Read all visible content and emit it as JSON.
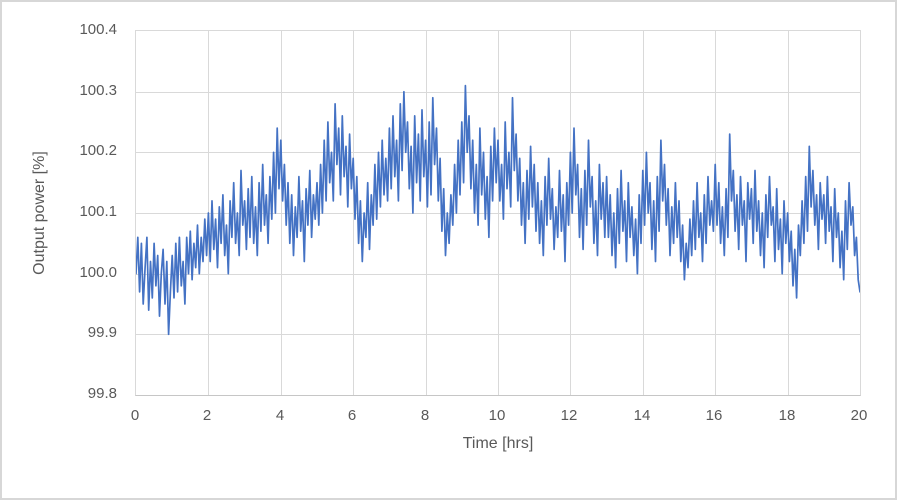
{
  "chart": {
    "line_color": "#4472C4",
    "grid_color": "#D9D9D9",
    "axis_color": "#C6C6C6",
    "text_color": "#595959",
    "background": "#FFFFFF"
  },
  "chart_data": {
    "type": "line",
    "title": "",
    "xlabel": "Time [hrs]",
    "ylabel": "Output power [%]",
    "xlim": [
      0,
      20
    ],
    "ylim": [
      99.8,
      100.4
    ],
    "x_ticks": [
      0,
      2,
      4,
      6,
      8,
      10,
      12,
      14,
      16,
      18,
      20
    ],
    "y_ticks": [
      99.8,
      99.9,
      100.0,
      100.1,
      100.2,
      100.3,
      100.4
    ],
    "x_tick_labels": [
      "0",
      "2",
      "4",
      "6",
      "8",
      "10",
      "12",
      "14",
      "16",
      "18",
      "20"
    ],
    "y_tick_labels": [
      "99.8",
      "99.9",
      "100.0",
      "100.1",
      "100.2",
      "100.3",
      "100.4"
    ],
    "grid": true,
    "legend": false,
    "x_start": 0,
    "x_step": 0.05,
    "series": [
      {
        "name": "Output power",
        "color": "#4472C4",
        "values": [
          100.0,
          100.06,
          99.97,
          100.05,
          99.95,
          100.01,
          100.06,
          99.94,
          100.02,
          99.96,
          100.05,
          99.98,
          100.03,
          99.93,
          100.0,
          100.04,
          99.95,
          100.02,
          99.9,
          99.97,
          100.03,
          99.96,
          100.05,
          99.97,
          100.06,
          99.98,
          100.02,
          99.95,
          100.06,
          100.0,
          100.07,
          99.99,
          100.05,
          100.01,
          100.08,
          100.0,
          100.06,
          100.02,
          100.09,
          100.03,
          100.1,
          100.02,
          100.12,
          100.04,
          100.09,
          100.01,
          100.11,
          100.05,
          100.13,
          100.03,
          100.08,
          100.0,
          100.12,
          100.06,
          100.15,
          100.05,
          100.1,
          100.03,
          100.17,
          100.08,
          100.12,
          100.04,
          100.14,
          100.06,
          100.16,
          100.05,
          100.11,
          100.03,
          100.15,
          100.07,
          100.18,
          100.08,
          100.13,
          100.05,
          100.16,
          100.09,
          100.2,
          100.1,
          100.24,
          100.14,
          100.22,
          100.12,
          100.18,
          100.08,
          100.15,
          100.05,
          100.13,
          100.03,
          100.11,
          100.06,
          100.16,
          100.07,
          100.12,
          100.02,
          100.14,
          100.08,
          100.17,
          100.06,
          100.13,
          100.09,
          100.15,
          100.08,
          100.18,
          100.1,
          100.22,
          100.12,
          100.25,
          100.15,
          100.2,
          100.12,
          100.28,
          100.18,
          100.24,
          100.13,
          100.26,
          100.16,
          100.21,
          100.11,
          100.23,
          100.14,
          100.19,
          100.09,
          100.16,
          100.05,
          100.12,
          100.02,
          100.1,
          100.06,
          100.15,
          100.04,
          100.13,
          100.08,
          100.18,
          100.09,
          100.2,
          100.11,
          100.22,
          100.13,
          100.19,
          100.12,
          100.24,
          100.14,
          100.26,
          100.16,
          100.22,
          100.12,
          100.28,
          100.17,
          100.3,
          100.2,
          100.25,
          100.14,
          100.21,
          100.1,
          100.26,
          100.15,
          100.23,
          100.12,
          100.27,
          100.16,
          100.22,
          100.11,
          100.25,
          100.13,
          100.29,
          100.18,
          100.24,
          100.12,
          100.19,
          100.07,
          100.14,
          100.03,
          100.1,
          100.05,
          100.13,
          100.08,
          100.18,
          100.1,
          100.22,
          100.13,
          100.25,
          100.15,
          100.31,
          100.2,
          100.26,
          100.14,
          100.22,
          100.1,
          100.18,
          100.08,
          100.24,
          100.13,
          100.2,
          100.09,
          100.16,
          100.06,
          100.21,
          100.12,
          100.24,
          100.15,
          100.22,
          100.12,
          100.18,
          100.09,
          100.25,
          100.14,
          100.2,
          100.11,
          100.29,
          100.17,
          100.23,
          100.12,
          100.19,
          100.08,
          100.15,
          100.05,
          100.17,
          100.09,
          100.21,
          100.11,
          100.18,
          100.07,
          100.15,
          100.05,
          100.12,
          100.03,
          100.16,
          100.08,
          100.19,
          100.09,
          100.14,
          100.04,
          100.11,
          100.06,
          100.17,
          100.07,
          100.13,
          100.02,
          100.15,
          100.08,
          100.2,
          100.1,
          100.24,
          100.13,
          100.18,
          100.06,
          100.14,
          100.04,
          100.17,
          100.08,
          100.22,
          100.11,
          100.16,
          100.05,
          100.12,
          100.03,
          100.18,
          100.09,
          100.15,
          100.06,
          100.16,
          100.06,
          100.13,
          100.03,
          100.1,
          100.01,
          100.14,
          100.05,
          100.17,
          100.07,
          100.12,
          100.02,
          100.15,
          100.06,
          100.11,
          100.03,
          100.09,
          100.0,
          100.13,
          100.05,
          100.17,
          100.08,
          100.2,
          100.1,
          100.15,
          100.04,
          100.12,
          100.02,
          100.16,
          100.07,
          100.22,
          100.12,
          100.18,
          100.08,
          100.14,
          100.03,
          100.11,
          100.05,
          100.15,
          100.06,
          100.12,
          100.02,
          100.08,
          99.99,
          100.05,
          100.01,
          100.09,
          100.03,
          100.12,
          100.04,
          100.15,
          100.06,
          100.1,
          100.02,
          100.13,
          100.05,
          100.16,
          100.08,
          100.12,
          100.07,
          100.18,
          100.08,
          100.15,
          100.05,
          100.11,
          100.03,
          100.14,
          100.06,
          100.23,
          100.12,
          100.17,
          100.07,
          100.13,
          100.04,
          100.16,
          100.08,
          100.12,
          100.02,
          100.15,
          100.09,
          100.14,
          100.05,
          100.17,
          100.07,
          100.12,
          100.03,
          100.1,
          100.01,
          100.13,
          100.06,
          100.16,
          100.08,
          100.11,
          100.02,
          100.14,
          100.04,
          100.09,
          100.0,
          100.12,
          100.05,
          100.1,
          100.02,
          100.07,
          99.98,
          100.04,
          99.96,
          100.08,
          100.03,
          100.12,
          100.05,
          100.16,
          100.07,
          100.21,
          100.11,
          100.17,
          100.08,
          100.13,
          100.04,
          100.15,
          100.09,
          100.13,
          100.05,
          100.16,
          100.07,
          100.11,
          100.02,
          100.14,
          100.06,
          100.1,
          100.01,
          100.07,
          99.99,
          100.12,
          100.04,
          100.15,
          100.08,
          100.11,
          100.03,
          100.06,
          99.99,
          99.97
        ]
      }
    ]
  }
}
